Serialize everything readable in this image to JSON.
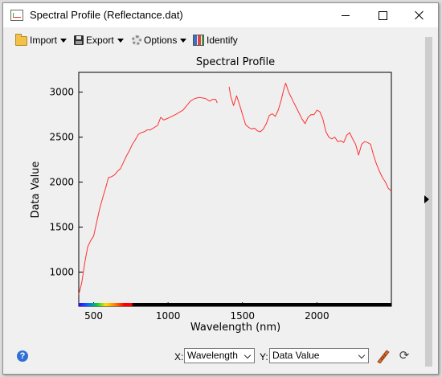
{
  "window": {
    "title": "Spectral Profile (Reflectance.dat)"
  },
  "toolbar": {
    "items": [
      {
        "label": "Import",
        "icon": "folder-icon",
        "dropdown": true
      },
      {
        "label": "Export",
        "icon": "save-icon",
        "dropdown": true
      },
      {
        "label": "Options",
        "icon": "gear-icon",
        "dropdown": true
      },
      {
        "label": "Identify",
        "icon": "identify-icon",
        "dropdown": false
      }
    ]
  },
  "chart_data": {
    "type": "line",
    "title": "Spectral Profile",
    "xlabel": "Wavelength (nm)",
    "ylabel": "Data Value",
    "xlim": [
      400,
      2500
    ],
    "ylim": [
      620,
      3220
    ],
    "xticks": [
      500,
      1000,
      1500,
      2000
    ],
    "yticks": [
      1000,
      1500,
      2000,
      2500,
      3000
    ],
    "line_color": "#ff3030",
    "grid": false,
    "series": [
      {
        "segments": [
          [
            [
              400,
              750
            ],
            [
              420,
              880
            ],
            [
              440,
              1100
            ],
            [
              460,
              1280
            ],
            [
              480,
              1350
            ],
            [
              500,
              1400
            ],
            [
              520,
              1550
            ],
            [
              540,
              1700
            ],
            [
              560,
              1820
            ],
            [
              580,
              1930
            ],
            [
              600,
              2050
            ],
            [
              620,
              2060
            ],
            [
              640,
              2080
            ],
            [
              660,
              2120
            ],
            [
              680,
              2150
            ],
            [
              700,
              2220
            ],
            [
              720,
              2290
            ],
            [
              740,
              2350
            ],
            [
              760,
              2420
            ],
            [
              780,
              2470
            ],
            [
              800,
              2530
            ],
            [
              820,
              2550
            ],
            [
              840,
              2560
            ],
            [
              860,
              2580
            ],
            [
              880,
              2580
            ],
            [
              900,
              2600
            ],
            [
              930,
              2630
            ],
            [
              950,
              2720
            ],
            [
              970,
              2690
            ],
            [
              1000,
              2710
            ],
            [
              1050,
              2750
            ],
            [
              1080,
              2780
            ],
            [
              1100,
              2800
            ],
            [
              1130,
              2860
            ],
            [
              1150,
              2900
            ],
            [
              1180,
              2930
            ],
            [
              1210,
              2940
            ],
            [
              1250,
              2930
            ],
            [
              1280,
              2900
            ],
            [
              1300,
              2920
            ],
            [
              1320,
              2920
            ],
            [
              1330,
              2880
            ]
          ],
          [
            [
              1410,
              3060
            ],
            [
              1420,
              2960
            ],
            [
              1440,
              2850
            ],
            [
              1460,
              2960
            ],
            [
              1480,
              2860
            ],
            [
              1500,
              2750
            ],
            [
              1520,
              2640
            ],
            [
              1540,
              2610
            ],
            [
              1560,
              2590
            ],
            [
              1580,
              2600
            ],
            [
              1600,
              2570
            ],
            [
              1620,
              2560
            ],
            [
              1640,
              2590
            ],
            [
              1660,
              2650
            ],
            [
              1680,
              2740
            ],
            [
              1700,
              2760
            ],
            [
              1720,
              2730
            ],
            [
              1740,
              2800
            ],
            [
              1760,
              2910
            ],
            [
              1780,
              3050
            ],
            [
              1790,
              3100
            ],
            [
              1810,
              3000
            ],
            [
              1840,
              2900
            ],
            [
              1870,
              2800
            ],
            [
              1900,
              2700
            ],
            [
              1920,
              2650
            ],
            [
              1940,
              2720
            ],
            [
              1960,
              2750
            ],
            [
              1980,
              2750
            ],
            [
              2000,
              2800
            ],
            [
              2020,
              2780
            ],
            [
              2040,
              2700
            ],
            [
              2060,
              2560
            ],
            [
              2080,
              2500
            ],
            [
              2100,
              2480
            ],
            [
              2120,
              2500
            ],
            [
              2140,
              2450
            ],
            [
              2160,
              2460
            ],
            [
              2180,
              2440
            ],
            [
              2200,
              2520
            ],
            [
              2220,
              2550
            ],
            [
              2240,
              2480
            ],
            [
              2260,
              2420
            ],
            [
              2280,
              2300
            ],
            [
              2300,
              2420
            ],
            [
              2320,
              2450
            ],
            [
              2340,
              2440
            ],
            [
              2360,
              2420
            ],
            [
              2380,
              2300
            ],
            [
              2400,
              2200
            ],
            [
              2420,
              2120
            ],
            [
              2440,
              2050
            ],
            [
              2460,
              2000
            ],
            [
              2480,
              1930
            ],
            [
              2500,
              1900
            ]
          ]
        ]
      }
    ]
  },
  "footer": {
    "x_label": "X:",
    "x_value": "Wavelength",
    "y_label": "Y:",
    "y_value": "Data Value"
  },
  "colors": {
    "window_bg": "#f0f0f0",
    "plot_bg": "#efefef",
    "series": "#ff3030"
  }
}
